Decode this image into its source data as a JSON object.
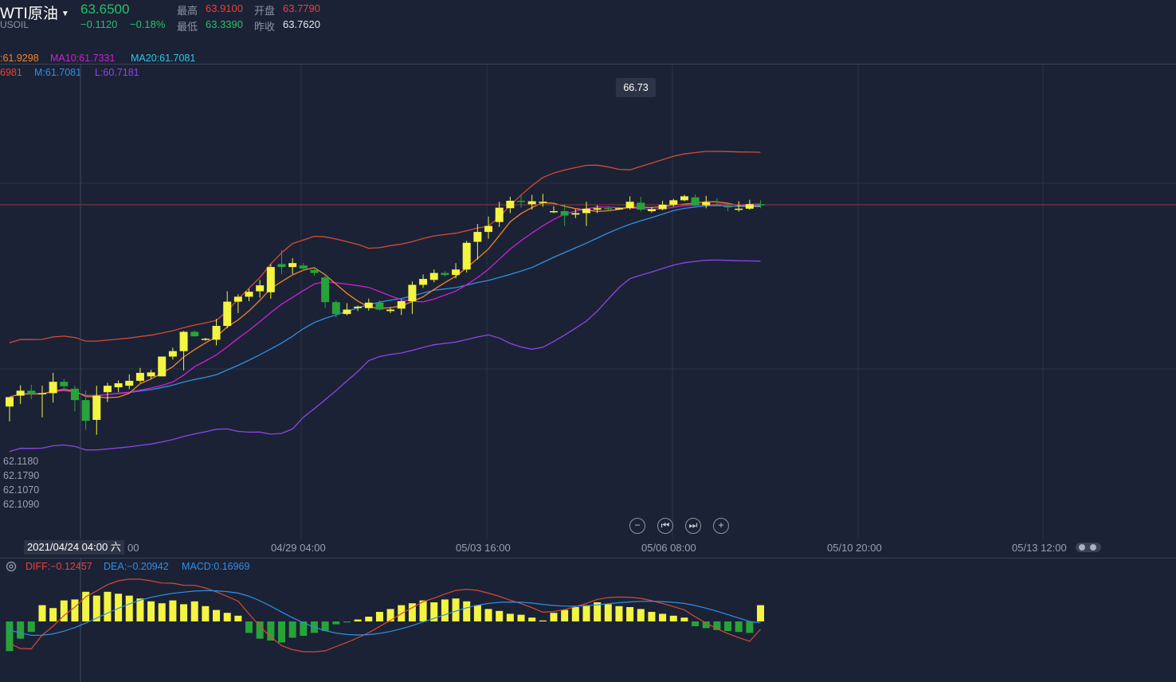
{
  "header": {
    "symbol": "WTI原油",
    "symbol_code": "USOIL",
    "price": "63.6500",
    "change": "−0.1120",
    "change_pct": "−0.18%",
    "high_label": "最高",
    "high": "63.9100",
    "open_label": "开盘",
    "open": "63.7790",
    "low_label": "最低",
    "low": "63.3390",
    "prev_close_label": "昨收",
    "prev_close": "63.7620"
  },
  "ma_legend": {
    "ma5": ":61.9298",
    "ma10": "MA10:61.7331",
    "ma20": "MA20:61.7081"
  },
  "boll_legend": {
    "upper": "6981",
    "mid": "M:61.7081",
    "lower": "L:60.7181"
  },
  "price_labels": [
    "62.1180",
    "62.1790",
    "62.1070",
    "62.1090"
  ],
  "tooltip": "66.73",
  "crosshair_label": "2021/04/24 04:00 六",
  "x_labels": [
    "00",
    "04/29 04:00",
    "05/03 16:00",
    "05/06 08:00",
    "05/10 20:00",
    "05/13 12:00"
  ],
  "controls": {
    "zoom_out": "−",
    "first": "⏮",
    "last": "⏭",
    "zoom_in": "+"
  },
  "macd_legend": {
    "diff": "DIFF:−0.12457",
    "dea": "DEA:−0.20942",
    "macd": "MACD:0.16969"
  },
  "colors": {
    "background": "#1b2235",
    "bull": "#f4f442",
    "bear": "#27a33a",
    "ma5": "#f2842c",
    "ma10": "#d01fd6",
    "ma20": "#2f8fe6",
    "boll_upper": "#d64a35",
    "boll_lower": "#8a47e8",
    "diff": "#d64a35",
    "dea": "#2f8fe6"
  },
  "chart_data": {
    "type": "candlestick",
    "ylim": [
      58.3,
      67.9
    ],
    "candles": [
      {
        "o": 60.97,
        "h": 61.16,
        "l": 60.67,
        "c": 61.16
      },
      {
        "o": 61.19,
        "h": 61.4,
        "l": 61.02,
        "c": 61.29
      },
      {
        "o": 61.29,
        "h": 61.41,
        "l": 61.12,
        "c": 61.22
      },
      {
        "o": 61.22,
        "h": 61.39,
        "l": 60.75,
        "c": 61.24
      },
      {
        "o": 61.24,
        "h": 61.65,
        "l": 61.05,
        "c": 61.47
      },
      {
        "o": 61.47,
        "h": 61.53,
        "l": 61.29,
        "c": 61.38
      },
      {
        "o": 61.33,
        "h": 61.39,
        "l": 60.87,
        "c": 61.1
      },
      {
        "o": 61.1,
        "h": 61.29,
        "l": 60.5,
        "c": 60.68
      },
      {
        "o": 60.7,
        "h": 61.39,
        "l": 60.4,
        "c": 61.19
      },
      {
        "o": 61.26,
        "h": 61.45,
        "l": 61.06,
        "c": 61.39
      },
      {
        "o": 61.36,
        "h": 61.5,
        "l": 61.26,
        "c": 61.44
      },
      {
        "o": 61.39,
        "h": 61.62,
        "l": 61.32,
        "c": 61.49
      },
      {
        "o": 61.49,
        "h": 61.75,
        "l": 61.45,
        "c": 61.65
      },
      {
        "o": 61.58,
        "h": 61.71,
        "l": 61.53,
        "c": 61.66
      },
      {
        "o": 61.58,
        "h": 61.98,
        "l": 61.58,
        "c": 61.98
      },
      {
        "o": 61.98,
        "h": 62.16,
        "l": 61.92,
        "c": 62.09
      },
      {
        "o": 62.09,
        "h": 62.5,
        "l": 61.7,
        "c": 62.48
      },
      {
        "o": 62.48,
        "h": 62.51,
        "l": 62.38,
        "c": 62.39
      },
      {
        "o": 62.33,
        "h": 62.36,
        "l": 62.3,
        "c": 62.34
      },
      {
        "o": 62.32,
        "h": 62.74,
        "l": 62.21,
        "c": 62.6
      },
      {
        "o": 62.6,
        "h": 63.3,
        "l": 62.55,
        "c": 63.09
      },
      {
        "o": 63.09,
        "h": 63.24,
        "l": 62.86,
        "c": 63.19
      },
      {
        "o": 63.19,
        "h": 63.35,
        "l": 63.1,
        "c": 63.29
      },
      {
        "o": 63.3,
        "h": 63.53,
        "l": 63.17,
        "c": 63.42
      },
      {
        "o": 63.28,
        "h": 63.85,
        "l": 63.15,
        "c": 63.79
      },
      {
        "o": 63.85,
        "h": 64.13,
        "l": 63.65,
        "c": 63.79
      },
      {
        "o": 63.79,
        "h": 63.97,
        "l": 63.65,
        "c": 63.87
      },
      {
        "o": 63.82,
        "h": 63.87,
        "l": 63.72,
        "c": 63.76
      },
      {
        "o": 63.73,
        "h": 63.79,
        "l": 63.61,
        "c": 63.67
      },
      {
        "o": 63.58,
        "h": 63.64,
        "l": 62.96,
        "c": 63.08
      },
      {
        "o": 63.08,
        "h": 63.12,
        "l": 62.77,
        "c": 62.84
      },
      {
        "o": 62.84,
        "h": 63.06,
        "l": 62.81,
        "c": 62.93
      },
      {
        "o": 62.96,
        "h": 63.01,
        "l": 62.9,
        "c": 62.99
      },
      {
        "o": 62.96,
        "h": 63.15,
        "l": 62.91,
        "c": 63.07
      },
      {
        "o": 63.07,
        "h": 63.12,
        "l": 62.91,
        "c": 62.93
      },
      {
        "o": 62.9,
        "h": 62.98,
        "l": 62.86,
        "c": 62.93
      },
      {
        "o": 62.95,
        "h": 63.13,
        "l": 62.82,
        "c": 63.1
      },
      {
        "o": 63.1,
        "h": 63.5,
        "l": 62.84,
        "c": 63.43
      },
      {
        "o": 63.43,
        "h": 63.64,
        "l": 63.37,
        "c": 63.55
      },
      {
        "o": 63.53,
        "h": 63.74,
        "l": 63.48,
        "c": 63.67
      },
      {
        "o": 63.67,
        "h": 63.71,
        "l": 63.6,
        "c": 63.63
      },
      {
        "o": 63.63,
        "h": 63.87,
        "l": 63.56,
        "c": 63.74
      },
      {
        "o": 63.74,
        "h": 64.32,
        "l": 63.68,
        "c": 64.28
      },
      {
        "o": 64.3,
        "h": 64.66,
        "l": 63.94,
        "c": 64.5
      },
      {
        "o": 64.5,
        "h": 64.81,
        "l": 64.36,
        "c": 64.62
      },
      {
        "o": 64.7,
        "h": 65.11,
        "l": 64.6,
        "c": 64.99
      },
      {
        "o": 64.98,
        "h": 65.21,
        "l": 64.88,
        "c": 65.13
      },
      {
        "o": 65.13,
        "h": 65.24,
        "l": 64.99,
        "c": 65.11
      },
      {
        "o": 65.06,
        "h": 65.25,
        "l": 64.95,
        "c": 65.12
      },
      {
        "o": 65.09,
        "h": 65.27,
        "l": 65.01,
        "c": 65.11
      },
      {
        "o": 64.9,
        "h": 65.02,
        "l": 64.88,
        "c": 64.92
      },
      {
        "o": 64.92,
        "h": 65.06,
        "l": 64.62,
        "c": 64.83
      },
      {
        "o": 64.85,
        "h": 64.96,
        "l": 64.78,
        "c": 64.88
      },
      {
        "o": 64.88,
        "h": 65.11,
        "l": 64.62,
        "c": 64.97
      },
      {
        "o": 64.95,
        "h": 65.04,
        "l": 64.88,
        "c": 64.98
      },
      {
        "o": 64.98,
        "h": 65.01,
        "l": 64.93,
        "c": 64.97
      },
      {
        "o": 64.96,
        "h": 64.99,
        "l": 64.95,
        "c": 64.98
      },
      {
        "o": 64.98,
        "h": 65.22,
        "l": 64.95,
        "c": 65.11
      },
      {
        "o": 65.09,
        "h": 65.21,
        "l": 64.91,
        "c": 64.95
      },
      {
        "o": 64.92,
        "h": 65.0,
        "l": 64.89,
        "c": 64.96
      },
      {
        "o": 64.96,
        "h": 65.13,
        "l": 64.94,
        "c": 65.05
      },
      {
        "o": 65.05,
        "h": 65.17,
        "l": 65.01,
        "c": 65.14
      },
      {
        "o": 65.14,
        "h": 65.25,
        "l": 65.12,
        "c": 65.22
      },
      {
        "o": 65.2,
        "h": 65.26,
        "l": 65.02,
        "c": 65.04
      },
      {
        "o": 65.04,
        "h": 65.23,
        "l": 64.98,
        "c": 65.1
      },
      {
        "o": 65.05,
        "h": 65.18,
        "l": 65.02,
        "c": 65.04
      },
      {
        "o": 65.02,
        "h": 65.08,
        "l": 64.92,
        "c": 65.0
      },
      {
        "o": 64.95,
        "h": 65.12,
        "l": 64.91,
        "c": 64.97
      },
      {
        "o": 64.97,
        "h": 65.15,
        "l": 64.95,
        "c": 65.06
      },
      {
        "o": 65.06,
        "h": 65.14,
        "l": 64.98,
        "c": 65.05
      }
    ],
    "macd": [
      -0.31,
      -0.18,
      -0.11,
      0.17,
      0.14,
      0.22,
      0.23,
      0.31,
      0.27,
      0.31,
      0.29,
      0.27,
      0.24,
      0.21,
      0.19,
      0.22,
      0.18,
      0.21,
      0.16,
      0.12,
      0.09,
      0.06,
      -0.12,
      -0.18,
      -0.2,
      -0.22,
      -0.17,
      -0.15,
      -0.12,
      -0.1,
      -0.03,
      -0.01,
      0.02,
      0.05,
      0.1,
      0.13,
      0.17,
      0.19,
      0.22,
      0.2,
      0.23,
      0.24,
      0.21,
      0.17,
      0.13,
      0.11,
      0.08,
      0.07,
      0.04,
      0.01,
      0.09,
      0.12,
      0.15,
      0.17,
      0.2,
      0.18,
      0.16,
      0.15,
      0.13,
      0.1,
      0.08,
      0.06,
      0.04,
      -0.05,
      -0.07,
      -0.09,
      -0.1,
      -0.11,
      -0.12,
      0.17
    ]
  }
}
